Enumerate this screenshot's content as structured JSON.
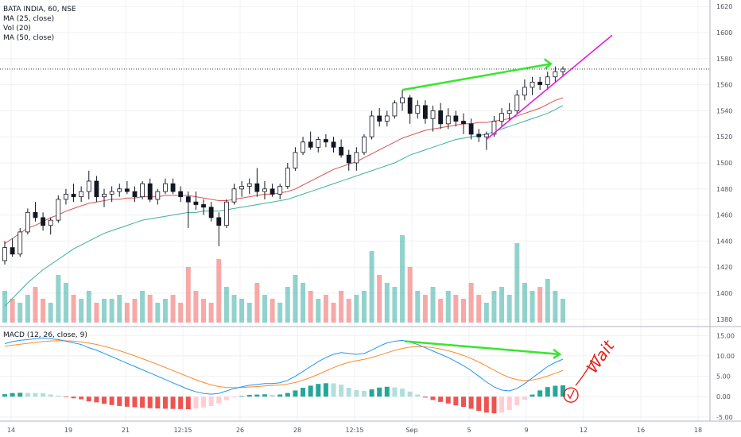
{
  "legend": {
    "symbol": "BATA INDIA, 60, NSE",
    "ma25": "MA (25, close)",
    "vol": "Vol (20)",
    "ma50": "MA (50, close)",
    "macd": "MACD (12, 26, close, 9)"
  },
  "colors": {
    "up": "#26a69a",
    "down": "#ef5350",
    "candle_body_up": "#ffffff",
    "candle_body_down": "#131722",
    "ma25": "#d9534f",
    "ma50": "#3bb29a",
    "macd_line": "#2196f3",
    "signal_line": "#ff8a2b",
    "trend_green": "#39e52e",
    "trend_magenta": "#e11ee1",
    "handwriting": "#e8221c"
  },
  "annotation_text": "Wait",
  "chart_data": [
    {
      "type": "candlestick",
      "title": "BATA INDIA, 60, NSE",
      "ylim": [
        1375,
        1625
      ],
      "price_ticks": [
        1380,
        1400,
        1420,
        1440,
        1460,
        1480,
        1500,
        1520,
        1540,
        1560,
        1580,
        1600,
        1620
      ],
      "date_ticks": [
        "14",
        "19",
        "21",
        "12:15",
        "26",
        "28",
        "12:15",
        "Sep",
        "5",
        "9",
        "12",
        "16",
        "18"
      ],
      "last_price": 1572,
      "candles": [
        [
          1425,
          1440,
          1422,
          1435
        ],
        [
          1435,
          1442,
          1428,
          1430
        ],
        [
          1430,
          1450,
          1428,
          1447
        ],
        [
          1447,
          1465,
          1445,
          1462
        ],
        [
          1462,
          1470,
          1455,
          1458
        ],
        [
          1458,
          1462,
          1448,
          1452
        ],
        [
          1452,
          1458,
          1445,
          1456
        ],
        [
          1456,
          1475,
          1454,
          1472
        ],
        [
          1472,
          1480,
          1468,
          1476
        ],
        [
          1476,
          1484,
          1470,
          1474
        ],
        [
          1474,
          1482,
          1470,
          1478
        ],
        [
          1478,
          1494,
          1472,
          1486
        ],
        [
          1486,
          1490,
          1470,
          1474
        ],
        [
          1474,
          1480,
          1466,
          1476
        ],
        [
          1476,
          1482,
          1470,
          1478
        ],
        [
          1478,
          1484,
          1474,
          1480
        ],
        [
          1480,
          1486,
          1476,
          1478
        ],
        [
          1478,
          1482,
          1470,
          1474
        ],
        [
          1474,
          1486,
          1472,
          1484
        ],
        [
          1484,
          1488,
          1470,
          1472
        ],
        [
          1472,
          1480,
          1468,
          1478
        ],
        [
          1478,
          1488,
          1476,
          1484
        ],
        [
          1484,
          1488,
          1476,
          1478
        ],
        [
          1478,
          1482,
          1470,
          1474
        ],
        [
          1474,
          1478,
          1450,
          1470
        ],
        [
          1470,
          1478,
          1464,
          1468
        ],
        [
          1468,
          1472,
          1460,
          1466
        ],
        [
          1466,
          1470,
          1455,
          1458
        ],
        [
          1458,
          1462,
          1436,
          1452
        ],
        [
          1452,
          1472,
          1450,
          1470
        ],
        [
          1470,
          1484,
          1468,
          1480
        ],
        [
          1480,
          1486,
          1474,
          1482
        ],
        [
          1482,
          1488,
          1476,
          1484
        ],
        [
          1484,
          1496,
          1474,
          1478
        ],
        [
          1478,
          1486,
          1472,
          1480
        ],
        [
          1480,
          1484,
          1474,
          1476
        ],
        [
          1476,
          1484,
          1472,
          1482
        ],
        [
          1482,
          1500,
          1480,
          1496
        ],
        [
          1496,
          1512,
          1494,
          1508
        ],
        [
          1508,
          1520,
          1506,
          1516
        ],
        [
          1516,
          1524,
          1510,
          1512
        ],
        [
          1512,
          1520,
          1508,
          1518
        ],
        [
          1518,
          1522,
          1512,
          1516
        ],
        [
          1516,
          1520,
          1508,
          1512
        ],
        [
          1512,
          1518,
          1504,
          1506
        ],
        [
          1506,
          1510,
          1494,
          1500
        ],
        [
          1500,
          1512,
          1494,
          1508
        ],
        [
          1508,
          1522,
          1506,
          1520
        ],
        [
          1520,
          1540,
          1518,
          1536
        ],
        [
          1536,
          1542,
          1528,
          1532
        ],
        [
          1532,
          1540,
          1528,
          1536
        ],
        [
          1536,
          1548,
          1534,
          1546
        ],
        [
          1546,
          1556,
          1540,
          1550
        ],
        [
          1550,
          1552,
          1530,
          1538
        ],
        [
          1538,
          1548,
          1534,
          1544
        ],
        [
          1544,
          1548,
          1530,
          1534
        ],
        [
          1534,
          1544,
          1524,
          1540
        ],
        [
          1540,
          1546,
          1526,
          1530
        ],
        [
          1530,
          1542,
          1526,
          1536
        ],
        [
          1536,
          1540,
          1528,
          1532
        ],
        [
          1532,
          1538,
          1522,
          1530
        ],
        [
          1530,
          1534,
          1518,
          1522
        ],
        [
          1522,
          1526,
          1516,
          1520
        ],
        [
          1520,
          1524,
          1510,
          1522
        ],
        [
          1522,
          1536,
          1520,
          1532
        ],
        [
          1532,
          1542,
          1528,
          1538
        ],
        [
          1538,
          1546,
          1532,
          1540
        ],
        [
          1540,
          1556,
          1538,
          1552
        ],
        [
          1552,
          1564,
          1548,
          1558
        ],
        [
          1558,
          1566,
          1552,
          1562
        ],
        [
          1562,
          1566,
          1556,
          1560
        ],
        [
          1560,
          1570,
          1556,
          1566
        ],
        [
          1566,
          1574,
          1562,
          1570
        ],
        [
          1570,
          1574,
          1566,
          1572
        ]
      ],
      "series": [
        {
          "name": "MA (25, close)",
          "values": [
            1438,
            1442,
            1446,
            1450,
            1452,
            1455,
            1458,
            1460,
            1463,
            1465,
            1467,
            1469,
            1470,
            1471,
            1472,
            1472,
            1473,
            1473,
            1474,
            1474,
            1474,
            1475,
            1475,
            1475,
            1475,
            1474,
            1473,
            1472,
            1471,
            1471,
            1472,
            1473,
            1474,
            1475,
            1476,
            1476,
            1477,
            1478,
            1480,
            1483,
            1486,
            1489,
            1492,
            1495,
            1497,
            1499,
            1501,
            1504,
            1507,
            1510,
            1513,
            1516,
            1519,
            1521,
            1523,
            1525,
            1526,
            1527,
            1528,
            1529,
            1530,
            1530,
            1531,
            1531,
            1532,
            1533,
            1534,
            1536,
            1538,
            1540,
            1542,
            1545,
            1548,
            1550
          ]
        },
        {
          "name": "MA (50, close)",
          "values": [
            1390,
            1396,
            1402,
            1408,
            1413,
            1418,
            1422,
            1426,
            1430,
            1434,
            1437,
            1440,
            1443,
            1446,
            1448,
            1450,
            1452,
            1454,
            1456,
            1457,
            1458,
            1459,
            1460,
            1461,
            1462,
            1462,
            1463,
            1463,
            1463,
            1464,
            1465,
            1466,
            1467,
            1468,
            1469,
            1470,
            1471,
            1472,
            1474,
            1476,
            1478,
            1480,
            1482,
            1484,
            1486,
            1488,
            1490,
            1492,
            1494,
            1496,
            1498,
            1500,
            1503,
            1506,
            1508,
            1510,
            1512,
            1514,
            1516,
            1518,
            1519,
            1520,
            1521,
            1522,
            1524,
            1526,
            1528,
            1530,
            1532,
            1534,
            1536,
            1538,
            1541,
            1544
          ]
        }
      ],
      "volume": [
        8,
        6,
        5,
        7,
        9,
        6,
        5,
        12,
        10,
        7,
        6,
        8,
        5,
        6,
        6,
        7,
        5,
        6,
        8,
        7,
        5,
        6,
        7,
        5,
        14,
        8,
        6,
        5,
        16,
        9,
        7,
        6,
        5,
        10,
        7,
        6,
        5,
        9,
        12,
        10,
        8,
        6,
        7,
        5,
        8,
        6,
        7,
        8,
        18,
        12,
        10,
        9,
        22,
        14,
        8,
        7,
        9,
        6,
        8,
        7,
        6,
        10,
        7,
        5,
        8,
        9,
        7,
        20,
        10,
        8,
        9,
        11,
        8,
        6
      ]
    },
    {
      "type": "macd",
      "title": "MACD (12, 26, close, 9)",
      "ylim": [
        -6,
        17
      ],
      "ticks": [
        -5.0,
        0.0,
        5.0,
        10.0,
        15.0
      ],
      "macd": [
        13,
        13.5,
        13.8,
        14,
        14.2,
        14.4,
        14.2,
        14,
        13.6,
        13.2,
        12.8,
        12,
        11.4,
        10.6,
        9.8,
        9,
        8.2,
        7.4,
        6.6,
        5.8,
        5,
        4.2,
        3.4,
        2.6,
        1.8,
        1.2,
        0.8,
        0.6,
        0.8,
        1.4,
        2,
        2.4,
        2.8,
        3,
        3.2,
        3.2,
        3.4,
        4,
        5,
        6.2,
        7.4,
        8.6,
        9.6,
        10.4,
        10.8,
        10.6,
        10.4,
        10.6,
        11.4,
        12.4,
        13.2,
        13.6,
        13.8,
        13.4,
        12.8,
        12,
        11.2,
        10.4,
        9.6,
        8.6,
        7.6,
        6.4,
        5,
        3.6,
        2.4,
        1.6,
        1.4,
        2,
        3.2,
        4.6,
        6,
        7.4,
        8.4,
        9.2
      ]
    }
  ]
}
